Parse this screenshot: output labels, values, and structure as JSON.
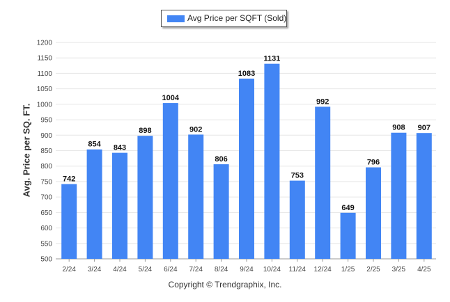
{
  "colors": {
    "bar": "#4285f4",
    "grid": "#e6e6e6",
    "axis": "#999999"
  },
  "legend": {
    "label": "Avg Price per SQFT (Sold)"
  },
  "footer": "Copyright © Trendgraphix, Inc.",
  "chart_data": {
    "type": "bar",
    "title": "",
    "xlabel": "",
    "ylabel": "Avg. Price per SQ. FT.",
    "ylim": [
      500,
      1200
    ],
    "yticks": [
      500,
      550,
      600,
      650,
      700,
      750,
      800,
      850,
      900,
      950,
      1000,
      1050,
      1100,
      1150,
      1200
    ],
    "grid": true,
    "legend_position": "top-center",
    "categories": [
      "2/24",
      "3/24",
      "4/24",
      "5/24",
      "6/24",
      "7/24",
      "8/24",
      "9/24",
      "10/24",
      "11/24",
      "12/24",
      "1/25",
      "2/25",
      "3/25",
      "4/25"
    ],
    "series": [
      {
        "name": "Avg Price per SQFT (Sold)",
        "values": [
          742,
          854,
          843,
          898,
          1004,
          902,
          806,
          1083,
          1131,
          753,
          992,
          649,
          796,
          908,
          907
        ]
      }
    ]
  }
}
